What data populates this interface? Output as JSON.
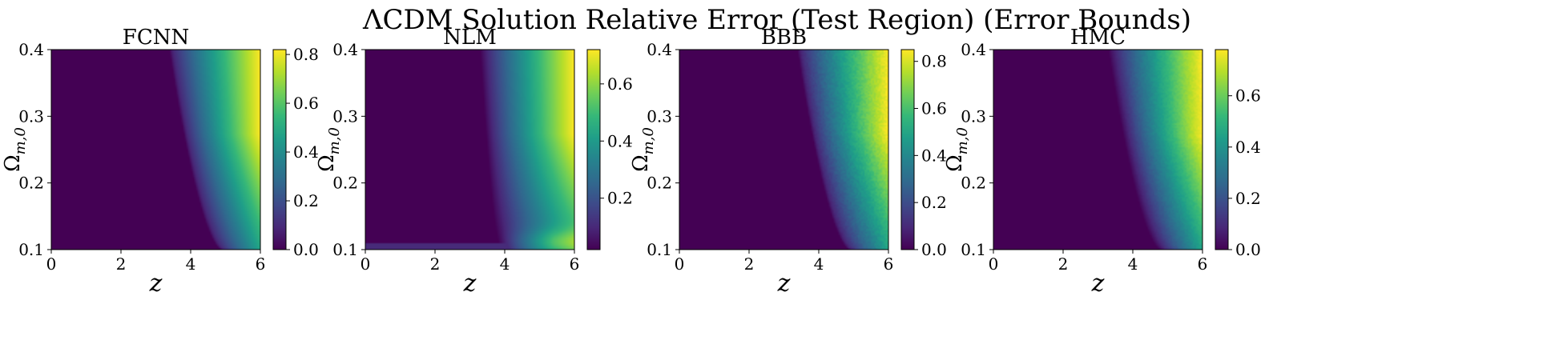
{
  "figure": {
    "title": "ΛCDM Solution Relative Error (Test Region) (Error Bounds)"
  },
  "colormap": {
    "name": "viridis",
    "stops": [
      "#440154",
      "#482878",
      "#3e4989",
      "#31688e",
      "#26828e",
      "#1f9e89",
      "#35b779",
      "#6ece58",
      "#b5de2b",
      "#fde725"
    ]
  },
  "chart_data": [
    {
      "type": "heatmap",
      "title": "FCNN",
      "xlabel": "z",
      "ylabel": "Ω_{m,0}",
      "xlim": [
        0,
        6
      ],
      "ylim": [
        0.1,
        0.4
      ],
      "xticks": [
        "0",
        "2",
        "4",
        "6"
      ],
      "yticks": [
        "0.1",
        "0.2",
        "0.3",
        "0.4"
      ],
      "colorbar": {
        "range": [
          0.0,
          0.82
        ],
        "ticks": [
          "0.0",
          "0.2",
          "0.4",
          "0.6",
          "0.8"
        ]
      },
      "boundary": {
        "z_at_om_0.1": 4.8,
        "z_at_om_0.4": 3.3,
        "curve_power": 0.6
      },
      "features": {
        "dip_ridge": true,
        "ridge_depth": 0.12,
        "noise": 0.0
      }
    },
    {
      "type": "heatmap",
      "title": "NLM",
      "xlabel": "z",
      "ylabel": "Ω_{m,0}",
      "xlim": [
        0,
        6
      ],
      "ylim": [
        0.1,
        0.4
      ],
      "xticks": [
        "0",
        "2",
        "4",
        "6"
      ],
      "yticks": [
        "0.1",
        "0.2",
        "0.3",
        "0.4"
      ],
      "colorbar": {
        "range": [
          0.02,
          0.72
        ],
        "ticks": [
          "0.2",
          "0.4",
          "0.6"
        ]
      },
      "boundary": {
        "z_at_om_0.1": 3.9,
        "z_at_om_0.4": 3.3,
        "curve_power": 0.6
      },
      "features": {
        "bottom_band_om": 0.11,
        "vertical_line_z": 3.9,
        "noise": 0.0
      }
    },
    {
      "type": "heatmap",
      "title": "BBB",
      "xlabel": "z",
      "ylabel": "Ω_{m,0}",
      "xlim": [
        0,
        6
      ],
      "ylim": [
        0.1,
        0.4
      ],
      "xticks": [
        "0",
        "2",
        "4",
        "6"
      ],
      "yticks": [
        "0.1",
        "0.2",
        "0.3",
        "0.4"
      ],
      "colorbar": {
        "range": [
          0.0,
          0.85
        ],
        "ticks": [
          "0.0",
          "0.2",
          "0.4",
          "0.6",
          "0.8"
        ]
      },
      "boundary": {
        "z_at_om_0.1": 4.8,
        "z_at_om_0.4": 3.3,
        "curve_power": 0.6
      },
      "features": {
        "dip_ridge": true,
        "ridge_depth": 0.12,
        "noise": 0.03
      }
    },
    {
      "type": "heatmap",
      "title": "HMC",
      "xlabel": "z",
      "ylabel": "Ω_{m,0}",
      "xlim": [
        0,
        6
      ],
      "ylim": [
        0.1,
        0.4
      ],
      "xticks": [
        "0",
        "2",
        "4",
        "6"
      ],
      "yticks": [
        "0.1",
        "0.2",
        "0.3",
        "0.4"
      ],
      "colorbar": {
        "range": [
          0.0,
          0.78
        ],
        "ticks": [
          "0.0",
          "0.2",
          "0.4",
          "0.6"
        ]
      },
      "boundary": {
        "z_at_om_0.1": 4.8,
        "z_at_om_0.4": 3.3,
        "curve_power": 0.6
      },
      "features": {
        "dip_ridge": false,
        "noise": 0.02
      }
    }
  ]
}
